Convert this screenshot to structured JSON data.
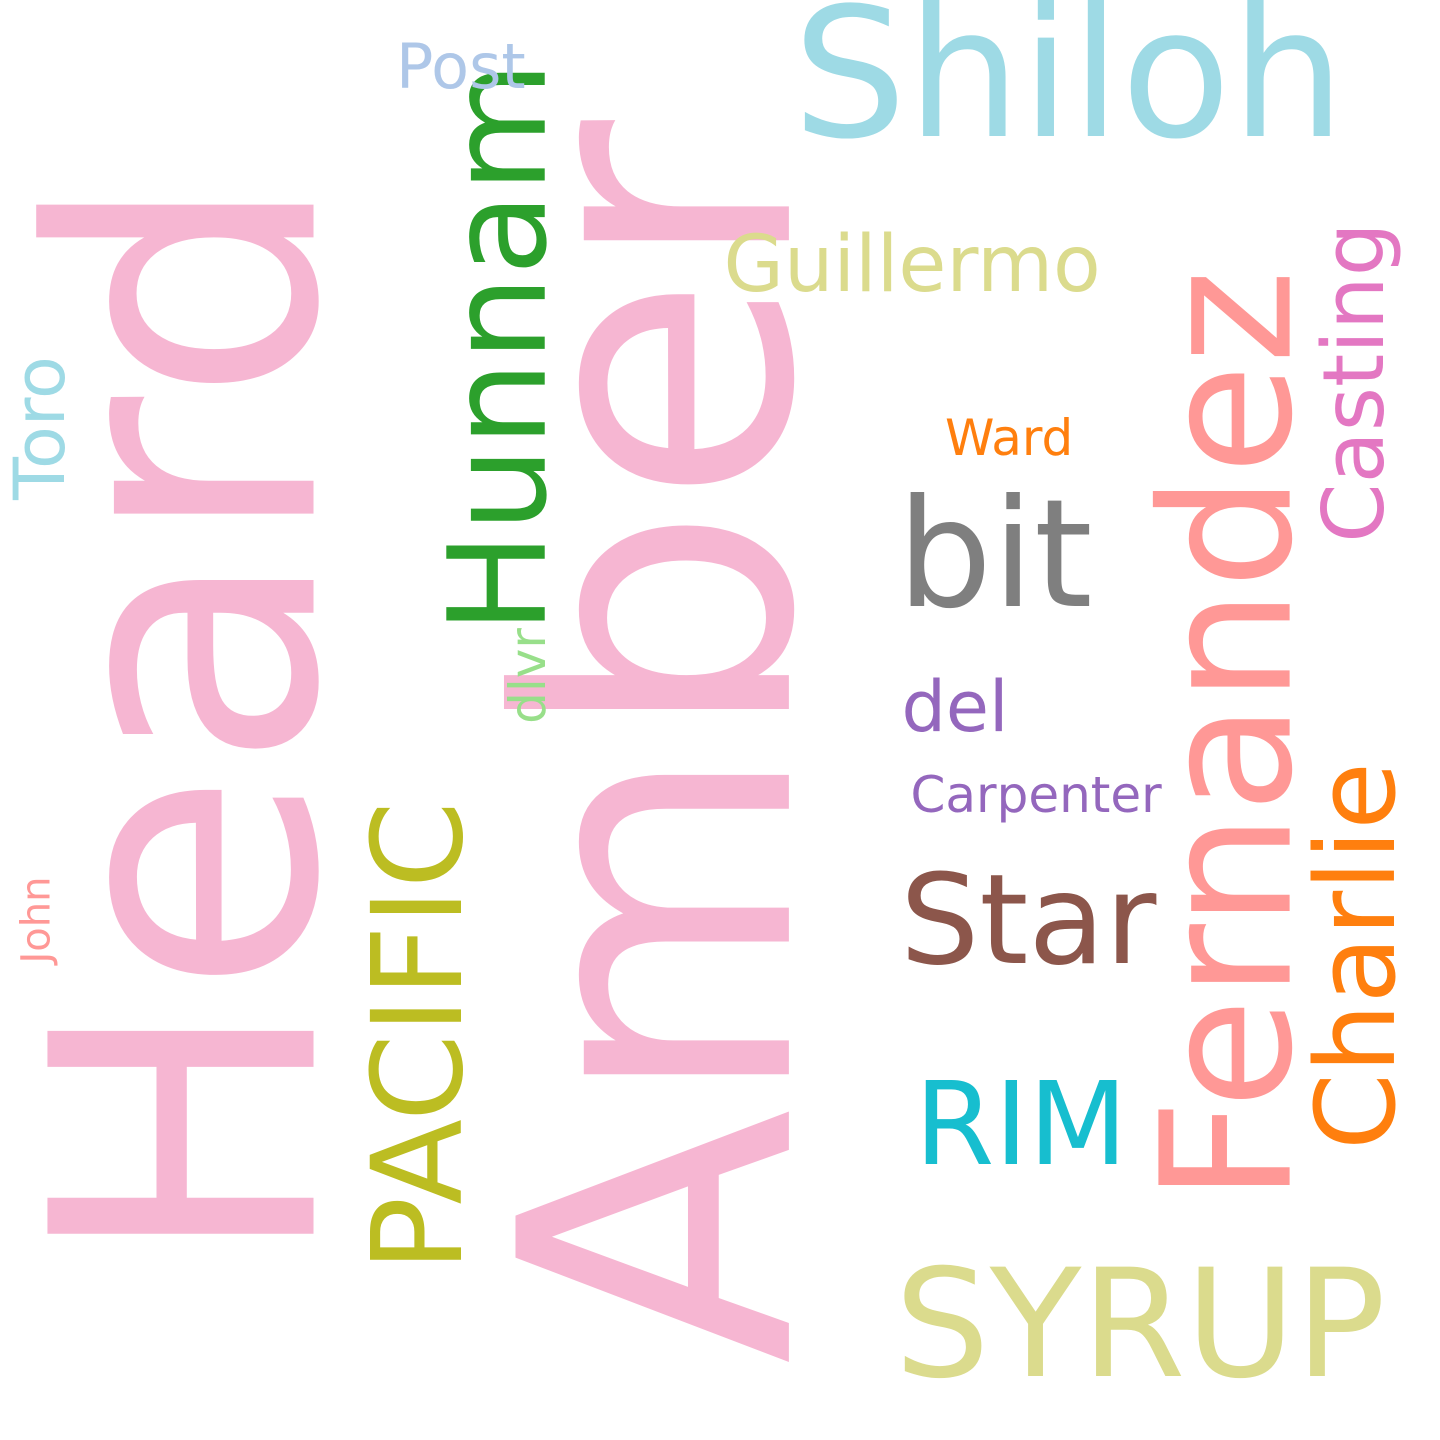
{
  "word_cloud": {
    "words": [
      {
        "key": "heard",
        "text": "Heard",
        "color": "#f6b6d2",
        "orientation": "vertical"
      },
      {
        "key": "amber",
        "text": "Amber",
        "color": "#f6b6d2",
        "orientation": "vertical"
      },
      {
        "key": "shiloh",
        "text": "Shiloh",
        "color": "#9edae5",
        "orientation": "horizontal"
      },
      {
        "key": "fernandez",
        "text": "Fernandez",
        "color": "#ff9896",
        "orientation": "vertical"
      },
      {
        "key": "hunnam",
        "text": "Hunnam",
        "color": "#2ca02c",
        "orientation": "vertical"
      },
      {
        "key": "syrup",
        "text": "SYRUP",
        "color": "#dbdb8d",
        "orientation": "horizontal"
      },
      {
        "key": "pacific",
        "text": "PACIFIC",
        "color": "#bcbd22",
        "orientation": "vertical"
      },
      {
        "key": "bit",
        "text": "bit",
        "color": "#7f7f7f",
        "orientation": "horizontal"
      },
      {
        "key": "star",
        "text": "Star",
        "color": "#8c564b",
        "orientation": "horizontal"
      },
      {
        "key": "charlie",
        "text": "Charlie",
        "color": "#ff7f0e",
        "orientation": "vertical"
      },
      {
        "key": "rim",
        "text": "RIM",
        "color": "#17becf",
        "orientation": "horizontal"
      },
      {
        "key": "casting",
        "text": "Casting",
        "color": "#e377c2",
        "orientation": "vertical"
      },
      {
        "key": "guillermo",
        "text": "Guillermo",
        "color": "#dbdb8d",
        "orientation": "horizontal"
      },
      {
        "key": "toro",
        "text": "Toro",
        "color": "#9edae5",
        "orientation": "vertical"
      },
      {
        "key": "del",
        "text": "del",
        "color": "#9467bd",
        "orientation": "horizontal"
      },
      {
        "key": "post",
        "text": "Post",
        "color": "#aec7e8",
        "orientation": "horizontal"
      },
      {
        "key": "dlvr",
        "text": "dlvr",
        "color": "#98df8a",
        "orientation": "vertical"
      },
      {
        "key": "carpenter",
        "text": "Carpenter",
        "color": "#9467bd",
        "orientation": "horizontal"
      },
      {
        "key": "ward",
        "text": "Ward",
        "color": "#ff7f0e",
        "orientation": "horizontal"
      },
      {
        "key": "john",
        "text": "John",
        "color": "#ff9896",
        "orientation": "vertical"
      }
    ]
  }
}
